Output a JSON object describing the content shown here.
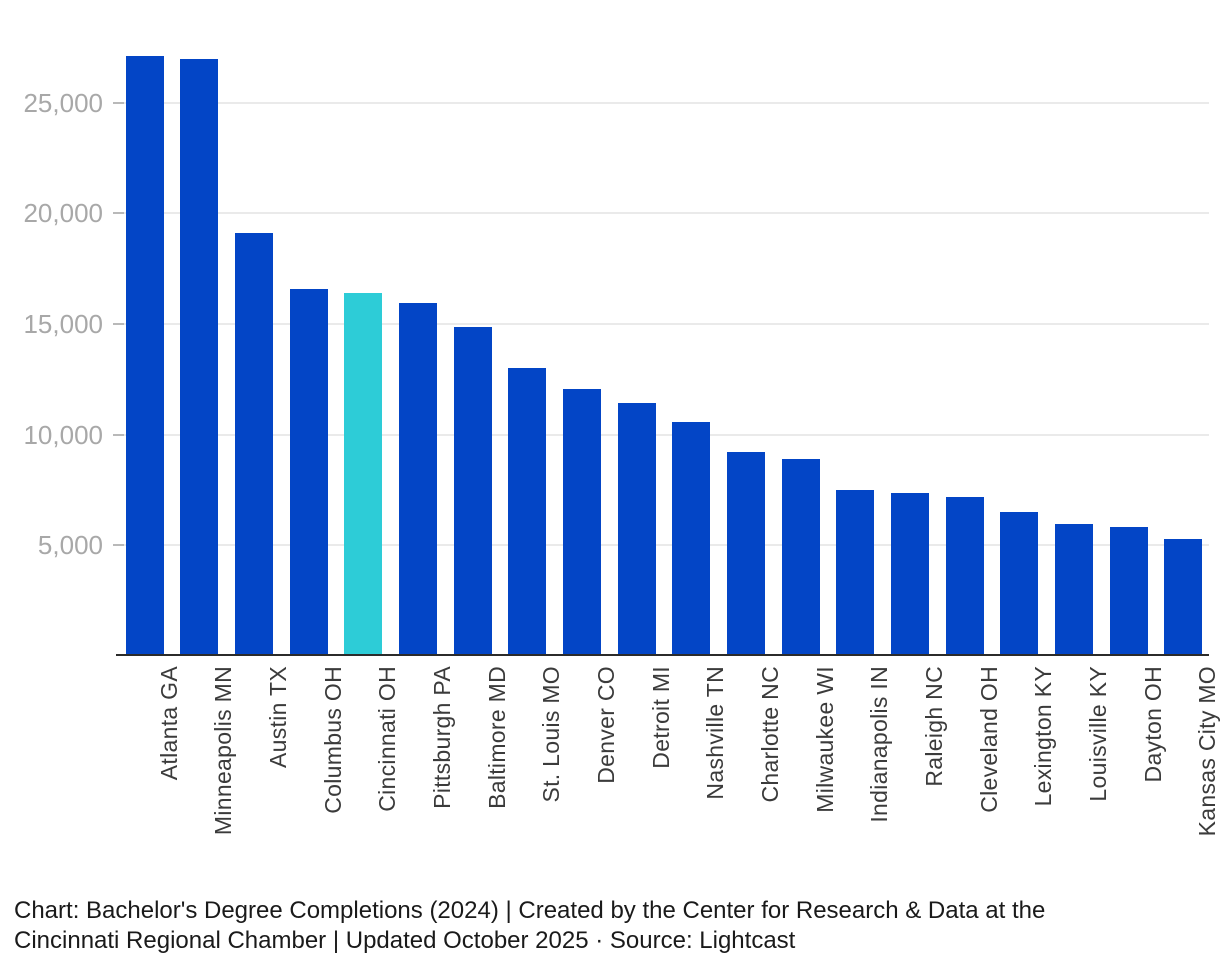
{
  "chart_data": {
    "type": "bar",
    "categories": [
      "Atlanta GA",
      "Minneapolis MN",
      "Austin TX",
      "Columbus OH",
      "Cincinnati OH",
      "Pittsburgh PA",
      "Baltimore MD",
      "St. Louis MO",
      "Denver CO",
      "Detroit MI",
      "Nashville TN",
      "Charlotte NC",
      "Milwaukee WI",
      "Indianapolis IN",
      "Raleigh NC",
      "Cleveland OH",
      "Lexington KY",
      "Louisville KY",
      "Dayton OH",
      "Kansas City MO"
    ],
    "values": [
      27100,
      26950,
      19100,
      16600,
      16400,
      15950,
      14850,
      13000,
      12050,
      11450,
      10550,
      9200,
      8900,
      7500,
      7350,
      7200,
      6500,
      5950,
      5850,
      5300
    ],
    "title": "Bachelor's Degree Completions (2024)",
    "xlabel": "",
    "ylabel": "",
    "ylim": [
      0,
      27500
    ],
    "yticks": [
      5000,
      10000,
      15000,
      20000,
      25000
    ],
    "ytick_labels": [
      "5,000",
      "10,000",
      "15,000",
      "20,000",
      "25,000"
    ],
    "grid": "horizontal",
    "legend": "none",
    "highlight": {
      "category": "Cincinnati OH",
      "index": 4
    }
  },
  "colors": {
    "bar": "#0345c6",
    "highlight_bar": "#2dccd7",
    "gridline": "#eaeaea",
    "ytick_dash": "#b9b9b9",
    "ylabel_text": "#a8a8a8",
    "xlabel_text": "#3b3b3b",
    "axis_line": "#2b2b2b",
    "caption_text": "#1a1a1a",
    "background": "#ffffff"
  },
  "caption": {
    "line1": "Chart: Bachelor's Degree Completions (2024) | Created by the Center for Research & Data at the",
    "line2": "Cincinnati Regional Chamber | Updated October 2025 · Source: Lightcast"
  }
}
